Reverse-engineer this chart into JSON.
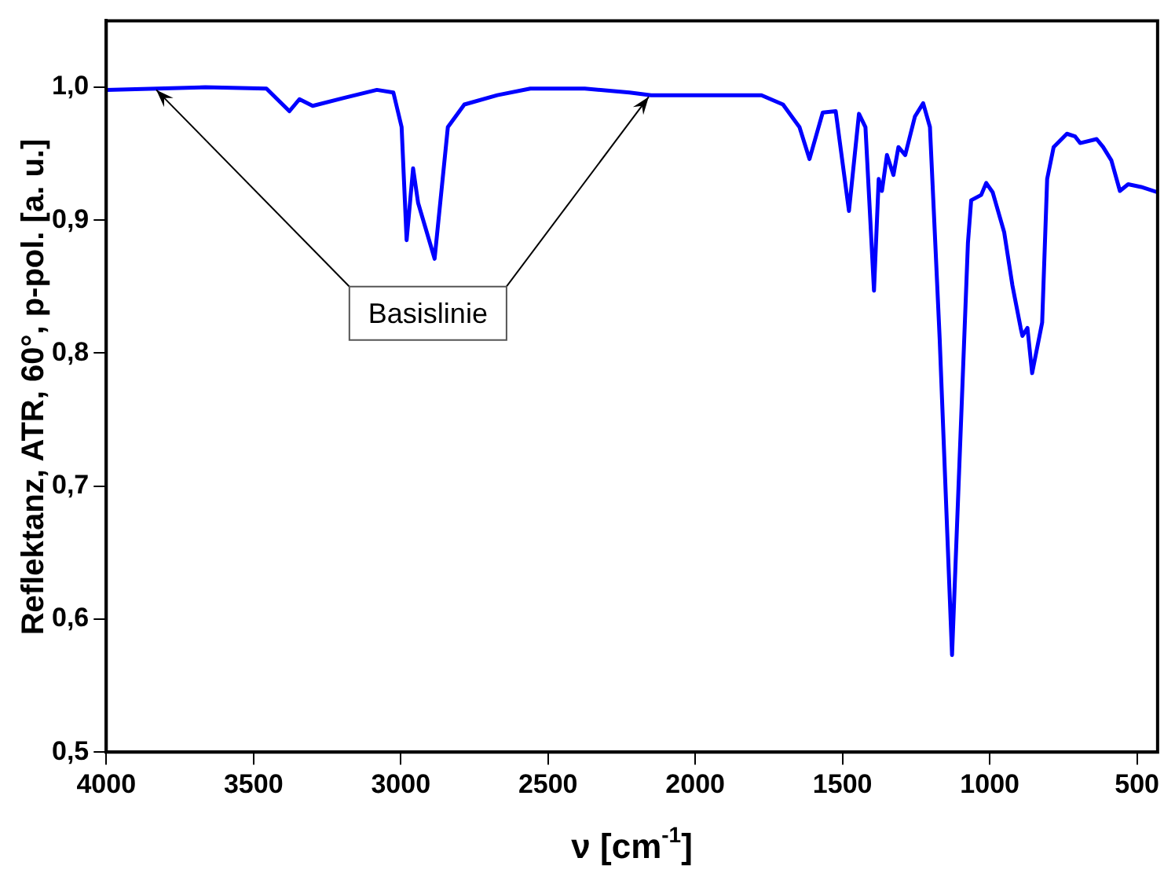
{
  "chart_data": {
    "type": "line",
    "xlabel": "ν [cm$^{-1}$]",
    "ylabel": "Reflektanz, ATR, 60°, p-pol. [a. u.]",
    "x": [
      4000,
      3664,
      3456,
      3378,
      3344,
      3299,
      3193,
      3081,
      3025,
      2997,
      2980,
      2958,
      2941,
      2885,
      2840,
      2784,
      2672,
      2560,
      2375,
      2223,
      2150,
      1775,
      1702,
      1646,
      1612,
      1567,
      1523,
      1478,
      1444,
      1422,
      1393,
      1377,
      1366,
      1349,
      1327,
      1310,
      1287,
      1254,
      1226,
      1203,
      1170,
      1128,
      1074,
      1063,
      1029,
      1012,
      990,
      951,
      923,
      895,
      889,
      872,
      856,
      822,
      805,
      783,
      738,
      710,
      693,
      637,
      615,
      587,
      558,
      530,
      486,
      430
    ],
    "series": [
      {
        "color": "#0000ff",
        "values": [
          0.998,
          1.0,
          0.999,
          0.982,
          0.991,
          0.986,
          0.992,
          0.998,
          0.996,
          0.97,
          0.885,
          0.939,
          0.913,
          0.871,
          0.97,
          0.987,
          0.994,
          0.999,
          0.999,
          0.996,
          0.994,
          0.994,
          0.987,
          0.97,
          0.946,
          0.981,
          0.982,
          0.907,
          0.98,
          0.97,
          0.847,
          0.931,
          0.922,
          0.949,
          0.934,
          0.955,
          0.949,
          0.978,
          0.988,
          0.97,
          0.811,
          0.573,
          0.883,
          0.915,
          0.919,
          0.928,
          0.921,
          0.891,
          0.851,
          0.819,
          0.813,
          0.819,
          0.785,
          0.823,
          0.931,
          0.955,
          0.965,
          0.963,
          0.958,
          0.961,
          0.955,
          0.945,
          0.922,
          0.927,
          0.925,
          0.921
        ]
      }
    ],
    "xlim": [
      4000,
      430
    ],
    "xticks": [
      4000,
      3500,
      3000,
      2500,
      2000,
      1500,
      1000,
      500
    ],
    "ylim": [
      0.5,
      1.05
    ],
    "yticks": [
      {
        "value": 0.5,
        "label": "0,5"
      },
      {
        "value": 0.6,
        "label": "0,6"
      },
      {
        "value": 0.7,
        "label": "0,7"
      },
      {
        "value": 0.8,
        "label": "0,8"
      },
      {
        "value": 0.9,
        "label": "0,9"
      },
      {
        "value": 1.0,
        "label": "1,0"
      }
    ],
    "annotations": [
      {
        "text": "Basislinie",
        "x": 3830,
        "y": 0.998
      }
    ],
    "grid": false,
    "legend": false
  }
}
